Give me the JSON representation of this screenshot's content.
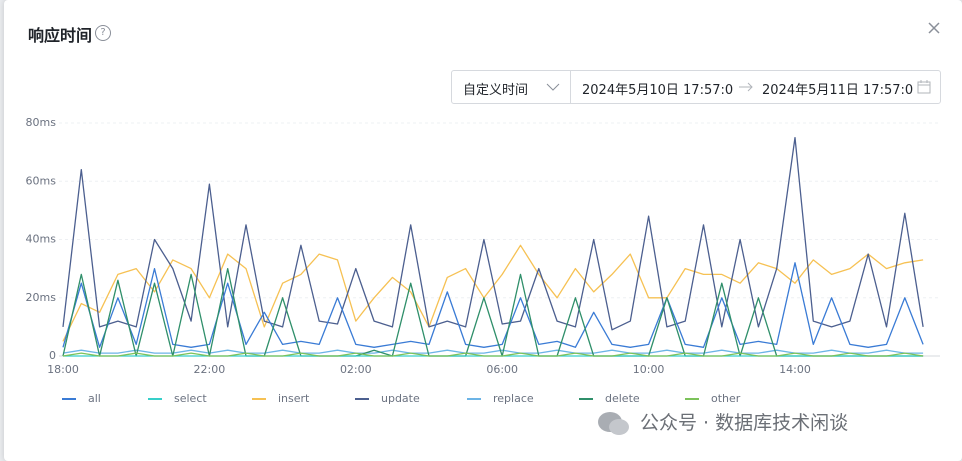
{
  "header": {
    "title": "响应时间"
  },
  "picker": {
    "mode": "自定义时间",
    "start": "2024年5月10日 17:57:0",
    "end": "2024年5月11日 17:57:0"
  },
  "watermark": "公众号 · 数据库技术闲谈",
  "chart_data": {
    "type": "line",
    "categories": [
      "18:00",
      null,
      null,
      null,
      null,
      null,
      null,
      null,
      "22:00",
      null,
      null,
      null,
      null,
      null,
      null,
      null,
      "02:00",
      null,
      null,
      null,
      null,
      null,
      null,
      null,
      "06:00",
      null,
      null,
      null,
      null,
      null,
      null,
      null,
      "10:00",
      null,
      null,
      null,
      null,
      null,
      null,
      null,
      "14:00",
      null,
      null,
      null,
      null,
      null,
      null,
      null
    ],
    "ylim": [
      0,
      80
    ],
    "yticks": [
      0,
      {
        "value": 20,
        "label": "20ms"
      },
      {
        "value": 40,
        "label": "40ms"
      },
      {
        "value": 60,
        "label": "60ms"
      },
      {
        "value": 80,
        "label": "80ms"
      }
    ],
    "grid": true,
    "series": [
      {
        "name": "all",
        "color": "#3a7bd5",
        "values": [
          3,
          25,
          3,
          20,
          4,
          30,
          4,
          3,
          4,
          25,
          4,
          15,
          4,
          5,
          4,
          20,
          4,
          3,
          4,
          5,
          4,
          22,
          4,
          3,
          4,
          20,
          4,
          5,
          3,
          15,
          4,
          3,
          4,
          20,
          4,
          3,
          20,
          4,
          5,
          4,
          32,
          4,
          20,
          4,
          3,
          4,
          20,
          4
        ]
      },
      {
        "name": "select",
        "color": "#36cfc9",
        "values": [
          0,
          0,
          0,
          0,
          0,
          0,
          0,
          0,
          0,
          0,
          0,
          0,
          0,
          0,
          0,
          0,
          0,
          0,
          0,
          0,
          0,
          0,
          0,
          0,
          0,
          0,
          0,
          0,
          0,
          0,
          0,
          0,
          0,
          0,
          0,
          0,
          0,
          0,
          0,
          0,
          0,
          0,
          0,
          0,
          0,
          0,
          0,
          0
        ]
      },
      {
        "name": "insert",
        "color": "#f6c153",
        "values": [
          5,
          18,
          15,
          28,
          30,
          22,
          33,
          30,
          20,
          35,
          30,
          10,
          25,
          28,
          35,
          33,
          12,
          20,
          27,
          22,
          10,
          27,
          30,
          20,
          28,
          38,
          28,
          20,
          30,
          22,
          28,
          35,
          20,
          20,
          30,
          28,
          28,
          25,
          32,
          30,
          25,
          33,
          28,
          30,
          35,
          30,
          32,
          33
        ]
      },
      {
        "name": "update",
        "color": "#4c5f8f",
        "values": [
          10,
          64,
          10,
          12,
          10,
          40,
          30,
          12,
          59,
          10,
          45,
          12,
          10,
          38,
          12,
          11,
          30,
          12,
          10,
          45,
          10,
          12,
          10,
          40,
          11,
          12,
          30,
          12,
          10,
          40,
          9,
          12,
          48,
          10,
          12,
          45,
          10,
          40,
          10,
          30,
          75,
          12,
          10,
          12,
          35,
          10,
          49,
          10
        ]
      },
      {
        "name": "replace",
        "color": "#6cb4e6",
        "values": [
          1,
          2,
          1,
          1,
          2,
          1,
          1,
          2,
          1,
          2,
          1,
          1,
          2,
          1,
          1,
          2,
          1,
          1,
          2,
          1,
          1,
          2,
          1,
          1,
          2,
          1,
          1,
          2,
          1,
          1,
          2,
          1,
          1,
          2,
          1,
          1,
          2,
          1,
          1,
          2,
          1,
          1,
          2,
          1,
          1,
          2,
          1,
          1
        ]
      },
      {
        "name": "delete",
        "color": "#2f8f6a",
        "values": [
          0,
          28,
          0,
          26,
          0,
          25,
          0,
          28,
          0,
          30,
          0,
          0,
          20,
          0,
          0,
          0,
          0,
          2,
          0,
          25,
          0,
          0,
          0,
          20,
          0,
          28,
          0,
          0,
          20,
          0,
          0,
          0,
          0,
          20,
          0,
          0,
          25,
          0,
          20,
          0,
          0,
          0,
          0,
          0,
          0,
          0,
          0,
          0
        ]
      },
      {
        "name": "other",
        "color": "#7cc25a",
        "values": [
          0,
          1,
          0,
          0,
          1,
          0,
          0,
          1,
          0,
          0,
          1,
          0,
          0,
          1,
          0,
          0,
          1,
          0,
          0,
          1,
          0,
          0,
          1,
          0,
          0,
          1,
          0,
          0,
          1,
          0,
          0,
          1,
          0,
          0,
          1,
          0,
          0,
          1,
          0,
          0,
          1,
          0,
          0,
          1,
          0,
          0,
          1,
          0
        ]
      }
    ]
  }
}
